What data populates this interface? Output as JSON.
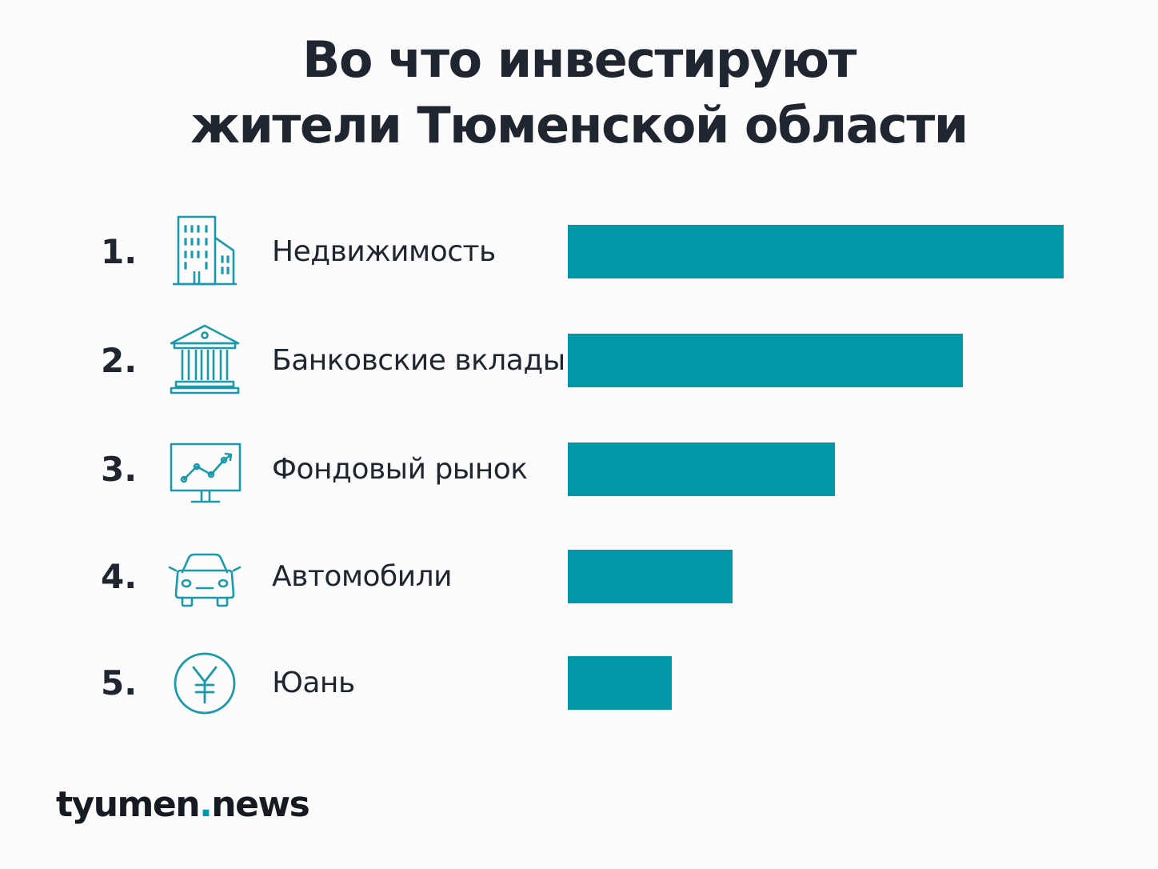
{
  "title_lines": [
    "Во что инвестируют",
    "жители Тюменской области"
  ],
  "brand": {
    "left": "tyumen",
    "dot": ".",
    "right": "news"
  },
  "colors": {
    "bar": "#0098a8",
    "icon": "#1a9aab",
    "text": "#1f2630"
  },
  "chart_data": {
    "type": "bar",
    "orientation": "horizontal",
    "title": "Во что инвестируют жители Тюменской области",
    "axis_labels_shown": false,
    "categories": [
      "Недвижимость",
      "Банковские вклады",
      "Фондовый рынок",
      "Автомобили",
      "Юань"
    ],
    "ranks": [
      "1.",
      "2.",
      "3.",
      "4.",
      "5."
    ],
    "icons": [
      "building-icon",
      "bank-icon",
      "stock-chart-monitor-icon",
      "car-icon",
      "yuan-coin-icon"
    ],
    "values": [
      100,
      79.6,
      53.9,
      33.2,
      21.0
    ],
    "value_scale": "relative, longest bar = 100",
    "xlim": [
      0,
      100
    ]
  }
}
